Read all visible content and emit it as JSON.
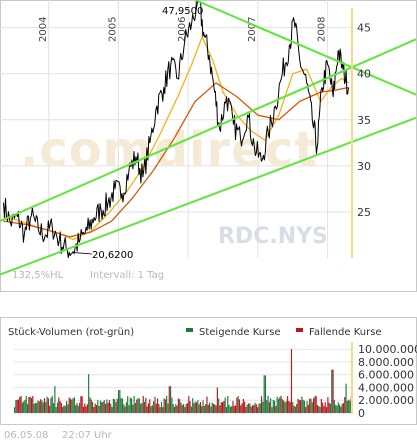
{
  "chart_data": [
    {
      "type": "line",
      "title": "",
      "symbol": "RDC.NYS",
      "watermark": ".comdirect",
      "x_labels": [
        "2004",
        "2005",
        "2006",
        "2007",
        "2008"
      ],
      "y_ticks": [
        25,
        30,
        35,
        40,
        45
      ],
      "ylim": [
        20,
        48
      ],
      "grid": true,
      "annotations": {
        "high": "47,9500",
        "low": "20,6200"
      },
      "footer_left": "132,5%HL",
      "footer_right": "Intervall: 1 Tag",
      "series": [
        {
          "kind": "price",
          "points": [
            [
              2003.35,
              26.0
            ],
            [
              2003.45,
              23.8
            ],
            [
              2003.55,
              24.5
            ],
            [
              2003.65,
              22.6
            ],
            [
              2003.75,
              24.6
            ],
            [
              2003.85,
              23.1
            ],
            [
              2003.95,
              22.5
            ],
            [
              2004.05,
              23.4
            ],
            [
              2004.15,
              21.9
            ],
            [
              2004.25,
              21.0
            ],
            [
              2004.35,
              20.7
            ],
            [
              2004.45,
              22.0
            ],
            [
              2004.55,
              23.0
            ],
            [
              2004.65,
              24.4
            ],
            [
              2004.75,
              25.2
            ],
            [
              2004.85,
              26.0
            ],
            [
              2004.95,
              27.5
            ],
            [
              2005.05,
              27.0
            ],
            [
              2005.15,
              29.5
            ],
            [
              2005.25,
              31.0
            ],
            [
              2005.35,
              28.8
            ],
            [
              2005.45,
              32.5
            ],
            [
              2005.55,
              36.5
            ],
            [
              2005.65,
              38.5
            ],
            [
              2005.75,
              41.0
            ],
            [
              2005.85,
              39.5
            ],
            [
              2005.95,
              43.5
            ],
            [
              2006.05,
              45.5
            ],
            [
              2006.15,
              47.95
            ],
            [
              2006.22,
              44.5
            ],
            [
              2006.3,
              42.0
            ],
            [
              2006.38,
              38.0
            ],
            [
              2006.45,
              34.0
            ],
            [
              2006.55,
              37.5
            ],
            [
              2006.65,
              34.5
            ],
            [
              2006.75,
              33.0
            ],
            [
              2006.85,
              35.5
            ],
            [
              2006.95,
              32.0
            ],
            [
              2007.05,
              30.5
            ],
            [
              2007.15,
              33.5
            ],
            [
              2007.25,
              36.5
            ],
            [
              2007.35,
              40.0
            ],
            [
              2007.45,
              43.0
            ],
            [
              2007.52,
              45.8
            ],
            [
              2007.6,
              41.5
            ],
            [
              2007.7,
              39.0
            ],
            [
              2007.78,
              35.0
            ],
            [
              2007.85,
              32.0
            ],
            [
              2007.92,
              38.5
            ],
            [
              2008.0,
              41.0
            ],
            [
              2008.08,
              37.5
            ],
            [
              2008.15,
              42.5
            ],
            [
              2008.22,
              40.5
            ],
            [
              2008.3,
              38.5
            ]
          ],
          "color": "#000000"
        },
        {
          "kind": "moving-average-short",
          "points": [
            [
              2003.35,
              24.5
            ],
            [
              2003.6,
              24.0
            ],
            [
              2003.85,
              23.3
            ],
            [
              2004.1,
              22.8
            ],
            [
              2004.35,
              22.0
            ],
            [
              2004.6,
              22.9
            ],
            [
              2004.85,
              24.8
            ],
            [
              2005.1,
              27.0
            ],
            [
              2005.35,
              29.8
            ],
            [
              2005.6,
              33.5
            ],
            [
              2005.85,
              37.5
            ],
            [
              2006.05,
              41.0
            ],
            [
              2006.2,
              44.0
            ],
            [
              2006.35,
              41.5
            ],
            [
              2006.5,
              38.0
            ],
            [
              2006.7,
              35.5
            ],
            [
              2006.9,
              33.8
            ],
            [
              2007.1,
              32.8
            ],
            [
              2007.3,
              35.5
            ],
            [
              2007.5,
              40.0
            ],
            [
              2007.7,
              40.5
            ],
            [
              2007.9,
              37.0
            ],
            [
              2008.05,
              38.5
            ],
            [
              2008.2,
              39.5
            ],
            [
              2008.3,
              39.0
            ]
          ],
          "color": "#f2b218"
        },
        {
          "kind": "moving-average-long",
          "points": [
            [
              2003.35,
              24.0
            ],
            [
              2003.7,
              23.6
            ],
            [
              2004.0,
              23.0
            ],
            [
              2004.3,
              22.3
            ],
            [
              2004.6,
              22.8
            ],
            [
              2004.9,
              24.0
            ],
            [
              2005.2,
              26.5
            ],
            [
              2005.5,
              29.5
            ],
            [
              2005.8,
              33.0
            ],
            [
              2006.1,
              37.0
            ],
            [
              2006.4,
              39.0
            ],
            [
              2006.7,
              37.5
            ],
            [
              2007.0,
              35.5
            ],
            [
              2007.3,
              35.0
            ],
            [
              2007.6,
              37.0
            ],
            [
              2007.9,
              38.0
            ],
            [
              2008.1,
              38.2
            ],
            [
              2008.3,
              38.5
            ]
          ],
          "color": "#d45a0a"
        },
        {
          "kind": "trendlines",
          "lines": [
            {
              "from": [
                2003.3,
                24.0
              ],
              "to": [
                2008.35,
                40.7
              ]
            },
            {
              "from": [
                2003.3,
                18.2
              ],
              "to": [
                2008.35,
                32.6
              ]
            },
            {
              "from": [
                2006.1,
                48.0
              ],
              "to": [
                2008.35,
                40.7
              ]
            }
          ],
          "color": "#5ee63a"
        }
      ]
    },
    {
      "type": "bar",
      "title": "Stück-Volumen (rot-grün)",
      "legend": [
        {
          "name": "Steigende Kurse",
          "color": "#1d7a3a"
        },
        {
          "name": "Fallende Kurse",
          "color": "#b8171d"
        }
      ],
      "y_ticks": [
        0,
        2000000,
        4000000,
        6000000,
        8000000,
        10000000
      ],
      "y_tick_labels": [
        "0",
        "2.000.000",
        "4.000.000",
        "6.000.000",
        "8.000.000",
        "10.000.000"
      ],
      "ylim": [
        0,
        10500000
      ],
      "bar_count": 260,
      "base_volume": 2000000,
      "spikes": [
        {
          "at": 0.12,
          "value": 4200000
        },
        {
          "at": 0.22,
          "value": 6100000
        },
        {
          "at": 0.31,
          "value": 3600000
        },
        {
          "at": 0.46,
          "value": 4200000
        },
        {
          "at": 0.6,
          "value": 4000000
        },
        {
          "at": 0.74,
          "value": 5900000
        },
        {
          "at": 0.82,
          "value": 10000000
        },
        {
          "at": 0.94,
          "value": 6800000
        },
        {
          "at": 0.98,
          "value": 4600000
        }
      ]
    }
  ],
  "footer": {
    "date": "06.05.08",
    "time": "22:07 Uhr"
  }
}
